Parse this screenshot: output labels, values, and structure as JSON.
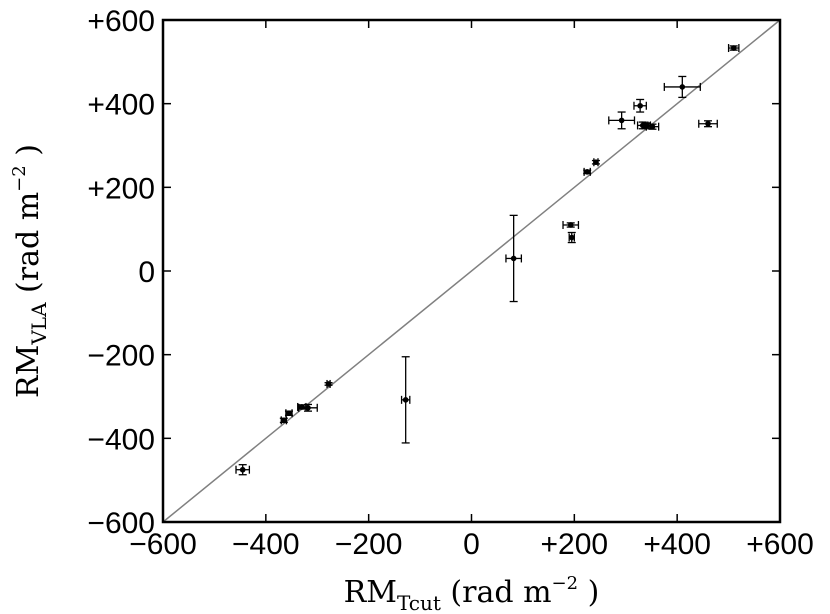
{
  "chart_data": {
    "type": "scatter",
    "title": "",
    "xlabel": {
      "main": "RM",
      "sub": "Tcut",
      "unit_pre": " (rad m",
      "sup": "−2",
      "unit_post": " )"
    },
    "ylabel": {
      "main": "RM",
      "sub": "VLA",
      "unit_pre": " (rad m",
      "sup": "−2",
      "unit_post": " )"
    },
    "xlim": [
      -600,
      600
    ],
    "ylim": [
      -600,
      600
    ],
    "xticks": [
      -600,
      -400,
      -200,
      0,
      200,
      400,
      600
    ],
    "yticks": [
      -600,
      -400,
      -200,
      0,
      200,
      400,
      600
    ],
    "xtick_labels": [
      "−600",
      "−400",
      "−200",
      "0",
      "+200",
      "+400",
      "+600"
    ],
    "ytick_labels": [
      "−600",
      "−400",
      "−200",
      "0",
      "+200",
      "+400",
      "+600"
    ],
    "grid": false,
    "reference_line": {
      "x": [
        -600,
        600
      ],
      "y": [
        -600,
        600
      ],
      "color": "#808080"
    },
    "points": [
      {
        "x": -445,
        "y": -475,
        "xerr": 13,
        "yerr": 12
      },
      {
        "x": -365,
        "y": -357,
        "xerr": 5,
        "yerr": 5
      },
      {
        "x": -355,
        "y": -340,
        "xerr": 6,
        "yerr": 5
      },
      {
        "x": -330,
        "y": -325,
        "xerr": 8,
        "yerr": 5
      },
      {
        "x": -318,
        "y": -327,
        "xerr": 18,
        "yerr": 8
      },
      {
        "x": -278,
        "y": -270,
        "xerr": 3,
        "yerr": 3
      },
      {
        "x": -128,
        "y": -308,
        "xerr": 8,
        "yerr": 103
      },
      {
        "x": 82,
        "y": 30,
        "xerr": 15,
        "yerr": 103
      },
      {
        "x": 193,
        "y": 110,
        "xerr": 15,
        "yerr": 5
      },
      {
        "x": 195,
        "y": 80,
        "xerr": 5,
        "yerr": 12
      },
      {
        "x": 225,
        "y": 237,
        "xerr": 6,
        "yerr": 4
      },
      {
        "x": 242,
        "y": 260,
        "xerr": 4,
        "yerr": 4
      },
      {
        "x": 292,
        "y": 360,
        "xerr": 25,
        "yerr": 20
      },
      {
        "x": 328,
        "y": 395,
        "xerr": 12,
        "yerr": 15
      },
      {
        "x": 333,
        "y": 348,
        "xerr": 10,
        "yerr": 8
      },
      {
        "x": 340,
        "y": 348,
        "xerr": 8,
        "yerr": 6
      },
      {
        "x": 352,
        "y": 345,
        "xerr": 12,
        "yerr": 6
      },
      {
        "x": 410,
        "y": 440,
        "xerr": 35,
        "yerr": 25
      },
      {
        "x": 460,
        "y": 352,
        "xerr": 18,
        "yerr": 7
      },
      {
        "x": 510,
        "y": 533,
        "xerr": 10,
        "yerr": 5
      }
    ]
  }
}
